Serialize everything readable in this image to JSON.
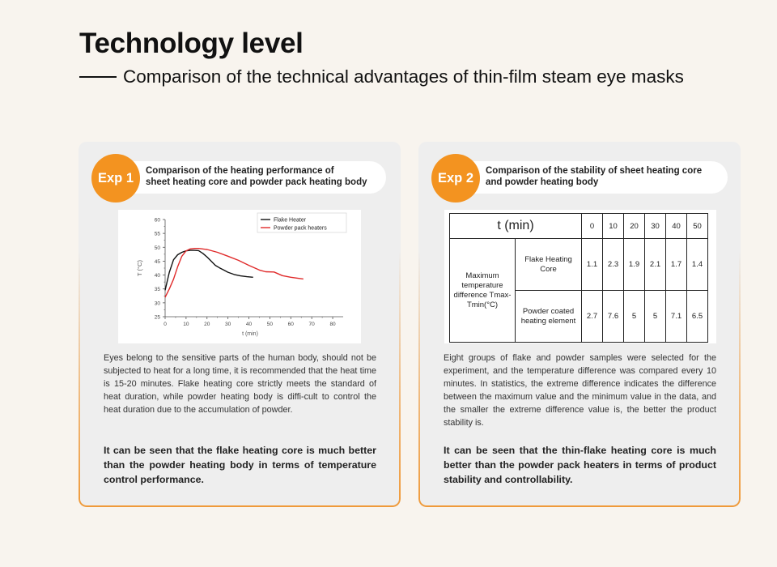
{
  "header": {
    "title": "Technology level",
    "subtitle": "Comparison of the technical advantages of thin-film steam eye masks"
  },
  "colors": {
    "accent": "#f39320",
    "border": "#ef9a3a",
    "background": "#f8f4ee",
    "card": "#eeeeee",
    "flake_line": "#111111",
    "powder_line": "#e02a2a"
  },
  "exp1": {
    "badge": "Exp 1",
    "heading_line1": "Comparison of the heating performance of",
    "heading_line2": "sheet heating core and powder pack heating body",
    "body": "Eyes belong to the sensitive parts of the human body, should not be subjected to heat for a long time, it is recommended that the heat time is 15-20 minutes. Flake heating core strictly meets the standard of heat duration, while powder heating body is diffi-cult to control the heat duration due to the accumulation of powder.",
    "conclusion": "It can be seen that the flake heating core is much better than the powder heating body in terms of temperature control performance."
  },
  "exp2": {
    "badge": "Exp 2",
    "heading_line1": "Comparison of the stability of sheet heating core",
    "heading_line2": "and powder heating body",
    "table": {
      "header_label": "t (min)",
      "columns": [
        "0",
        "10",
        "20",
        "30",
        "40",
        "50"
      ],
      "row_group_label": "Maximum temperature difference Tmax-Tmin(°C)",
      "rows": [
        {
          "label": "Flake Heating Core",
          "values": [
            "1.1",
            "2.3",
            "1.9",
            "2.1",
            "1.7",
            "1.4"
          ]
        },
        {
          "label": "Powder coated heating element",
          "values": [
            "2.7",
            "7.6",
            "5",
            "5",
            "7.1",
            "6.5"
          ]
        }
      ]
    },
    "body": "Eight groups of flake and powder samples were selected for the experiment, and the temperature difference was compared every 10 minutes. In statistics, the extreme difference indicates the difference between the maximum value and the minimum value in the data, and the smaller the extreme difference value is, the better the product stability is.",
    "conclusion": "It can be seen that the thin-flake heating core is much better than the powder pack heaters in terms of product stability and controllability."
  },
  "chart_data": {
    "type": "line",
    "title": "",
    "xlabel": "t (min)",
    "ylabel": "T (°C)",
    "xlim": [
      0,
      85
    ],
    "ylim": [
      25,
      60
    ],
    "xticks": [
      "0",
      "10",
      "20",
      "30",
      "40",
      "50",
      "60",
      "70",
      "80"
    ],
    "yticks": [
      "25",
      "30",
      "35",
      "40",
      "45",
      "50",
      "55",
      "60"
    ],
    "grid": false,
    "legend_position": "top-right",
    "series": [
      {
        "name": "Flake Heater",
        "color": "#111111",
        "x": [
          0,
          2,
          4,
          6,
          8,
          10,
          12,
          14,
          16,
          18,
          20,
          22,
          24,
          26,
          28,
          30,
          33,
          36,
          39,
          42
        ],
        "y": [
          34.5,
          41,
          45.5,
          47.3,
          48.2,
          48.7,
          48.9,
          48.9,
          48.8,
          47.8,
          46.5,
          45,
          43.5,
          42.6,
          41.8,
          41,
          40.2,
          39.7,
          39.4,
          39.2
        ]
      },
      {
        "name": "Powder pack heaters",
        "color": "#e02a2a",
        "x": [
          0,
          2,
          4,
          6,
          8,
          10,
          12,
          14,
          16,
          20,
          25,
          30,
          35,
          40,
          45,
          48,
          52,
          56,
          60,
          66
        ],
        "y": [
          32,
          35,
          38.5,
          43,
          46.8,
          48.7,
          49.4,
          49.6,
          49.6,
          49.2,
          48.2,
          46.8,
          45.3,
          43.5,
          41.8,
          41.2,
          41.1,
          39.8,
          39.2,
          38.6
        ]
      }
    ]
  }
}
